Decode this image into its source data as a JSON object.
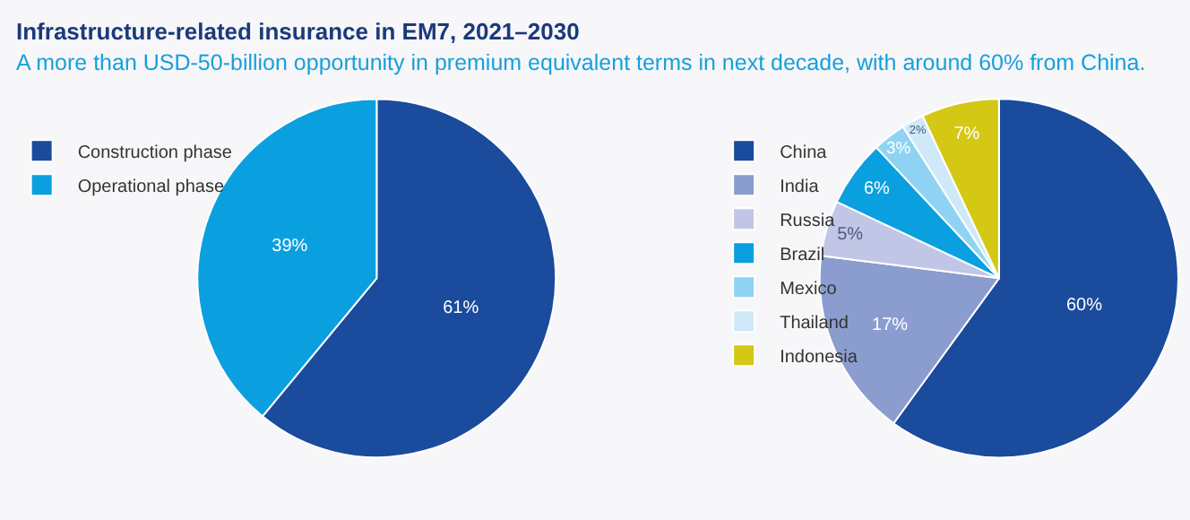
{
  "chart_data": [
    {
      "type": "pie",
      "title": "Infrastructure-related insurance in EM7, 2021–2030",
      "subtitle": "A more than USD-50-billion opportunity in premium equivalent terms in next decade, with around 60% from China.",
      "categories": [
        "Construction phase",
        "Operational phase"
      ],
      "values": [
        61,
        39
      ],
      "value_labels": [
        "61%",
        "39%"
      ],
      "colors": [
        "#1a4b9c",
        "#0aa0e0"
      ],
      "legend": "left"
    },
    {
      "type": "pie",
      "categories": [
        "China",
        "India",
        "Russia",
        "Brazil",
        "Mexico",
        "Thailand",
        "Indonesia"
      ],
      "values": [
        60,
        17,
        5,
        6,
        3,
        2,
        7
      ],
      "value_labels": [
        "60%",
        "17%",
        "5%",
        "6%",
        "3%",
        "2%",
        "7%"
      ],
      "colors": [
        "#1a4b9c",
        "#8b9ccf",
        "#c2c6e6",
        "#0aa0e0",
        "#8fd3f4",
        "#cfe9f8",
        "#d4c814"
      ],
      "legend": "left"
    }
  ]
}
